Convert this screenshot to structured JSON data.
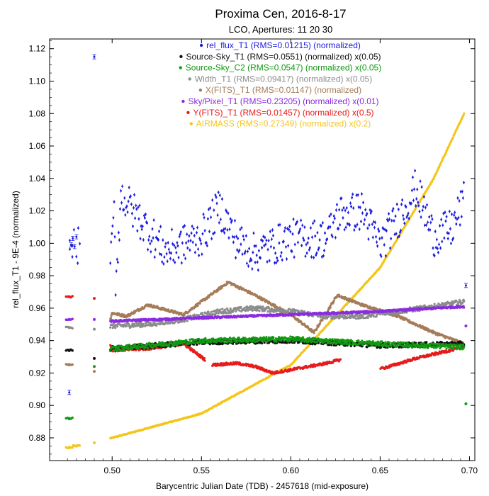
{
  "chart_data": {
    "type": "scatter",
    "title": "Proxima Cen, 2016-8-17",
    "subtitle": "LCO, Apertures: 11 20 30",
    "xlabel": "Barycentric Julian Date (TDB) - 2457618 (mid-exposure)",
    "ylabel": "rel_flux_T1 - 9E-4 (normalized)",
    "xlim": [
      0.465,
      0.703
    ],
    "ylim": [
      0.866,
      1.126
    ],
    "x_ticks": [
      0.5,
      0.55,
      0.6,
      0.65,
      0.7
    ],
    "x_tick_labels": [
      "0.50",
      "0.55",
      "0.60",
      "0.65",
      "0.70"
    ],
    "y_ticks": [
      0.88,
      0.9,
      0.92,
      0.94,
      0.96,
      0.98,
      1.0,
      1.02,
      1.04,
      1.06,
      1.08,
      1.1,
      1.12
    ],
    "y_tick_labels": [
      "0.88",
      "0.90",
      "0.92",
      "0.94",
      "0.96",
      "0.98",
      "1.00",
      "1.02",
      "1.04",
      "1.06",
      "1.08",
      "1.10",
      "1.12"
    ],
    "grid": false,
    "legend_placement": "top-center",
    "series": [
      {
        "name": "rel_flux_T1 (RMS=0.01215) (normalized)",
        "color": "#1a1adf",
        "marker": "errorbar-dot",
        "sample_x": [
          0.476,
          0.477,
          0.478,
          0.479,
          0.48,
          0.49,
          0.499,
          0.501,
          0.502,
          0.505,
          0.52,
          0.53,
          0.55,
          0.56,
          0.57,
          0.58,
          0.6,
          0.62,
          0.627,
          0.64,
          0.65,
          0.66,
          0.67,
          0.68,
          0.69,
          0.697,
          0.698
        ],
        "sample_y": [
          0.908,
          0.999,
          1.003,
          0.998,
          1.004,
          1.115,
          0.981,
          1.022,
          0.976,
          1.03,
          1.008,
          0.995,
          1.004,
          1.022,
          1.001,
          0.994,
          1.003,
          1.003,
          1.018,
          1.02,
          0.999,
          1.015,
          1.034,
          1.004,
          1.009,
          1.026,
          0.974
        ]
      },
      {
        "name": "Source-Sky_T1 (RMS=0.0551) (normalized) x(0.05)",
        "color": "#111111",
        "marker": "dot",
        "sample_x": [
          0.476,
          0.49,
          0.5,
          0.55,
          0.6,
          0.65,
          0.697
        ],
        "sample_y": [
          0.934,
          0.929,
          0.935,
          0.939,
          0.94,
          0.937,
          0.938
        ]
      },
      {
        "name": "Source-Sky_C2 (RMS=0.0547) (normalized) x(0.05)",
        "color": "#119911",
        "marker": "dot",
        "sample_x": [
          0.476,
          0.49,
          0.5,
          0.55,
          0.6,
          0.65,
          0.697,
          0.698
        ],
        "sample_y": [
          0.892,
          0.924,
          0.935,
          0.94,
          0.941,
          0.938,
          0.936,
          0.901
        ]
      },
      {
        "name": "Width_T1 (RMS=0.09417) (normalized) x(0.05)",
        "color": "#8c8c8c",
        "marker": "dot",
        "sample_x": [
          0.476,
          0.49,
          0.5,
          0.52,
          0.54,
          0.56,
          0.58,
          0.6,
          0.62,
          0.64,
          0.66,
          0.68,
          0.697
        ],
        "sample_y": [
          0.948,
          0.947,
          0.949,
          0.95,
          0.953,
          0.958,
          0.96,
          0.958,
          0.955,
          0.955,
          0.958,
          0.961,
          0.964
        ]
      },
      {
        "name": "X(FITS)_T1 (RMS=0.01147) (normalized)",
        "color": "#a57c58",
        "marker": "dot",
        "sample_x": [
          0.476,
          0.49,
          0.5,
          0.508,
          0.52,
          0.54,
          0.555,
          0.565,
          0.58,
          0.6,
          0.613,
          0.626,
          0.64,
          0.66,
          0.68,
          0.697
        ],
        "sample_y": [
          0.925,
          0.921,
          0.957,
          0.955,
          0.962,
          0.956,
          0.968,
          0.976,
          0.968,
          0.956,
          0.945,
          0.968,
          0.962,
          0.955,
          0.945,
          0.938
        ]
      },
      {
        "name": "Sky/Pixel_T1 (RMS=0.23205) (normalized) x(0.01)",
        "color": "#8a2be2",
        "marker": "dot",
        "sample_x": [
          0.476,
          0.49,
          0.5,
          0.55,
          0.6,
          0.65,
          0.697,
          0.698
        ],
        "sample_y": [
          0.953,
          0.953,
          0.952,
          0.954,
          0.956,
          0.958,
          0.961,
          0.949
        ]
      },
      {
        "name": "Y(FITS)_T1 (RMS=0.01457) (normalized) x(0.5)",
        "color": "#e61c1c",
        "marker": "dot",
        "sample_x": [
          0.476,
          0.49,
          0.5,
          0.52,
          0.54,
          0.556,
          0.57,
          0.58,
          0.59,
          0.6,
          0.62,
          0.627,
          0.652,
          0.67,
          0.697
        ],
        "sample_y": [
          0.967,
          0.966,
          0.934,
          0.935,
          0.938,
          0.925,
          0.926,
          0.924,
          0.92,
          0.922,
          0.926,
          0.928,
          0.923,
          0.929,
          0.936
        ]
      },
      {
        "name": "AIRMASS (RMS=0.27349) (normalized) x(0.2)",
        "color": "#f5c518",
        "marker": "dot",
        "sample_x": [
          0.476,
          0.48,
          0.49,
          0.5,
          0.55,
          0.6,
          0.65,
          0.68,
          0.697
        ],
        "sample_y": [
          0.874,
          0.875,
          0.877,
          0.88,
          0.895,
          0.925,
          0.985,
          1.04,
          1.08
        ]
      }
    ]
  }
}
